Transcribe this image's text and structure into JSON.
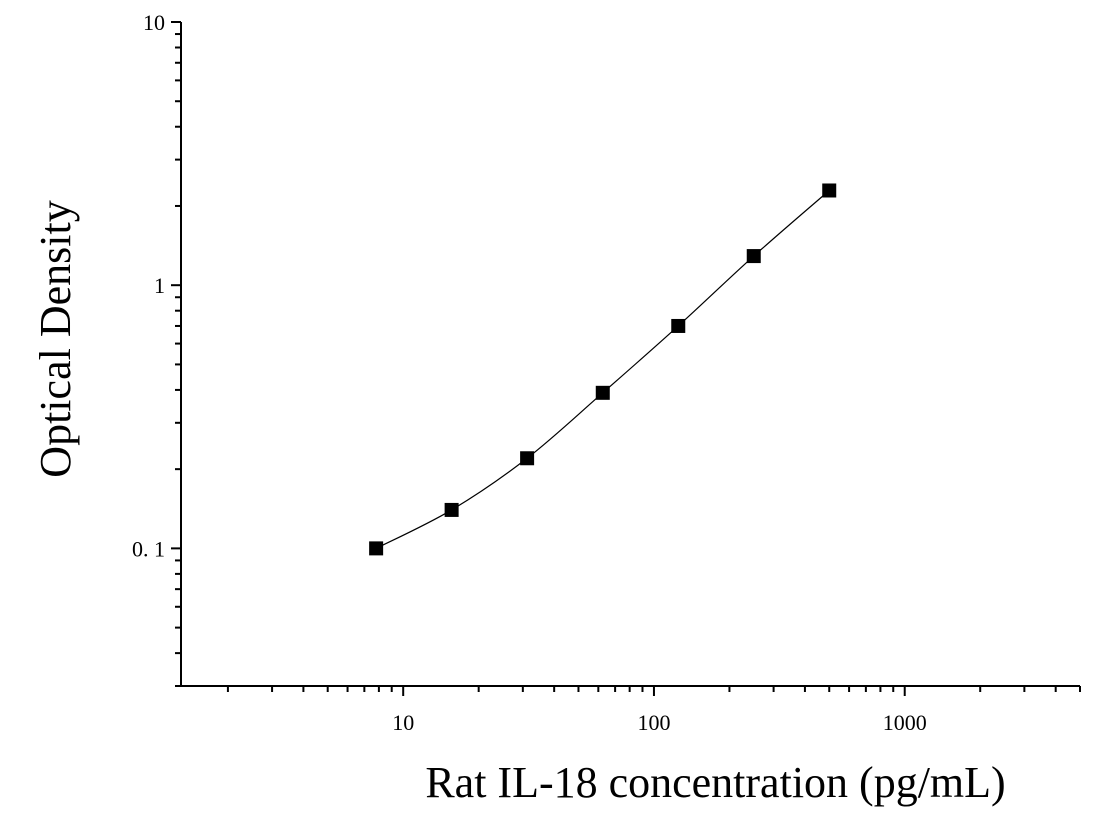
{
  "chart_data": {
    "type": "scatter",
    "x": [
      7.8,
      15.6,
      31.2,
      62.5,
      125,
      250,
      500
    ],
    "y": [
      0.1,
      0.14,
      0.22,
      0.39,
      0.7,
      1.29,
      2.29
    ],
    "xlabel": "Rat IL-18 concentration (pg/mL)",
    "ylabel": "Optical Density",
    "xscale": "log",
    "yscale": "log",
    "xlim": [
      1.3,
      5000
    ],
    "ylim": [
      0.03,
      10
    ],
    "x_ticks": [
      10,
      100,
      1000
    ],
    "x_tick_labels": [
      "10",
      "100",
      "1000"
    ],
    "y_ticks": [
      0.1,
      1,
      10
    ],
    "y_tick_labels": [
      "0. 1",
      "1",
      "10"
    ],
    "grid": false,
    "fit_curve": true,
    "marker": "square",
    "colors": {
      "marker": "#000000",
      "line": "#000000"
    }
  }
}
